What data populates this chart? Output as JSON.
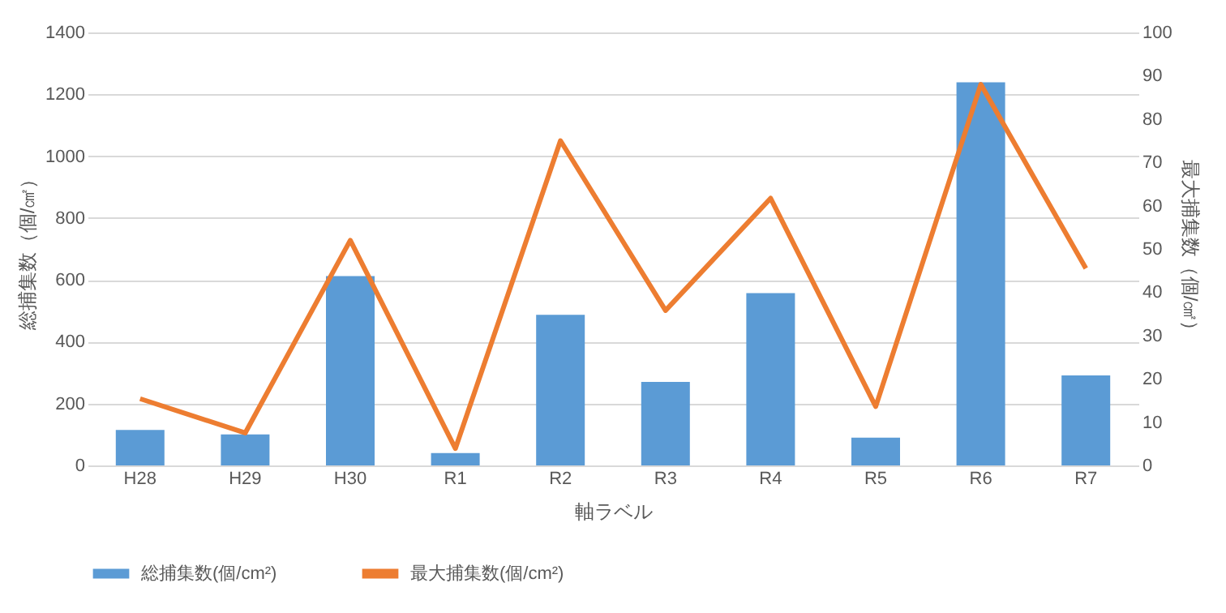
{
  "chart_data": {
    "type": "bar",
    "xlabel": "軸ラベル",
    "ylabel": "総捕集数（個/㎠）",
    "y2label": "最大捕集数（個/㎠）",
    "categories": [
      "H28",
      "H29",
      "H30",
      "R1",
      "R2",
      "R3",
      "R4",
      "R5",
      "R6",
      "R7"
    ],
    "series": [
      {
        "name": "総捕集数(個/cm²)",
        "color": "#5b9bd5",
        "values": [
          115,
          100,
          612,
          40,
          487,
          270,
          557,
          90,
          1239,
          291
        ]
      },
      {
        "name": "最大捕集数(個/cm²)",
        "type": "line",
        "axis": "y2",
        "color": "#ed7d31",
        "values": [
          15.4,
          7.5,
          52,
          3.9,
          75,
          35.8,
          61.7,
          13.6,
          88,
          45.5
        ]
      }
    ],
    "ylim": [
      0,
      1400
    ],
    "yticks": [
      0,
      200,
      400,
      600,
      800,
      {
        "value": 1000,
        "label": "1000"
      },
      {
        "value": 1200,
        "label": "1200"
      },
      {
        "value": 1400,
        "label": "1400"
      }
    ],
    "y2lim": [
      0,
      100
    ],
    "y2ticks": [
      0,
      10,
      20,
      30,
      40,
      50,
      60,
      70,
      80,
      90,
      100
    ],
    "grid": "y",
    "legend": "bottom",
    "marker": "none",
    "line_style": "solid"
  }
}
